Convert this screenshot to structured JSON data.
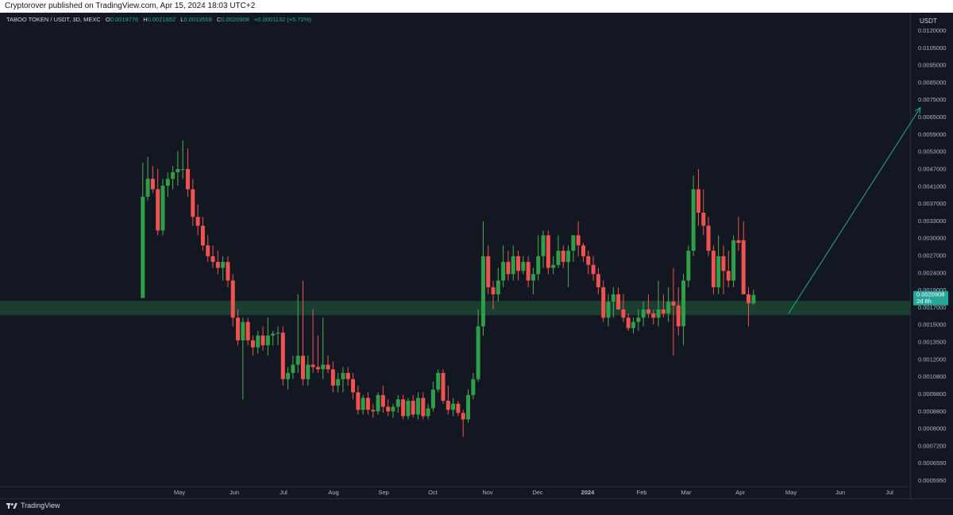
{
  "header": {
    "published": "Cryptorover published on TradingView.com, Apr 15, 2024 18:03 UTC+2"
  },
  "legend": {
    "symbol": "TABOO TOKEN / USDT, 3D, MEXC",
    "o_label": "O",
    "o": "0.0019776",
    "h_label": "H",
    "h": "0.0021652",
    "l_label": "L",
    "l": "0.0019559",
    "c_label": "C",
    "c": "0.0020908",
    "change": "+0.0001132 (+5.72%)"
  },
  "axis": {
    "unit": "USDT",
    "price_ticks": [
      "0.0120000",
      "0.0105000",
      "0.0095000",
      "0.0085000",
      "0.0075000",
      "0.0065000",
      "0.0059000",
      "0.0053000",
      "0.0047000",
      "0.0041000",
      "0.0037000",
      "0.0033000",
      "0.0030000",
      "0.0027000",
      "0.0024000",
      "0.0019000",
      "0.0017000",
      "0.0015000",
      "0.0013500",
      "0.0012000",
      "0.0010800",
      "0.0009800",
      "0.0008800",
      "0.0008000",
      "0.0007200",
      "0.0006550",
      "0.0005950"
    ],
    "time_ticks": [
      "May",
      "Jun",
      "Jul",
      "Aug",
      "Sep",
      "Oct",
      "Nov",
      "Dec",
      "2024",
      "Feb",
      "Mar",
      "Apr",
      "May",
      "Jun",
      "Jul"
    ]
  },
  "last_price": {
    "value": "0.0020908",
    "countdown": "2d 8h",
    "color": "#26a69a"
  },
  "brand": {
    "name": "TradingView"
  },
  "colors": {
    "up": "#26a69a",
    "up_body": "#2e9e48",
    "down": "#ef5350",
    "zone": "#1e4d36",
    "arrow": "#26a69a"
  },
  "chart_data": {
    "type": "candlestick",
    "title": "TABOO TOKEN / USDT, 3D, MEXC",
    "scale": "log",
    "ylim": [
      0.00057,
      0.0128
    ],
    "support_zone": [
      0.00183,
      0.00201
    ],
    "projection": {
      "from": [
        "2024-04-30",
        0.00185
      ],
      "to": [
        "2024-07-18",
        0.0072
      ]
    },
    "candles": [
      {
        "t": "2023-04-09",
        "o": 0.00205,
        "h": 0.005,
        "l": 0.00205,
        "c": 0.004
      },
      {
        "t": "2023-04-12",
        "o": 0.004,
        "h": 0.0052,
        "l": 0.0039,
        "c": 0.0045
      },
      {
        "t": "2023-04-15",
        "o": 0.0045,
        "h": 0.0049,
        "l": 0.0041,
        "c": 0.0042
      },
      {
        "t": "2023-04-18",
        "o": 0.0042,
        "h": 0.0048,
        "l": 0.0031,
        "c": 0.0032
      },
      {
        "t": "2023-04-21",
        "o": 0.0032,
        "h": 0.0045,
        "l": 0.0031,
        "c": 0.0043
      },
      {
        "t": "2023-04-24",
        "o": 0.0043,
        "h": 0.0047,
        "l": 0.004,
        "c": 0.0045
      },
      {
        "t": "2023-04-27",
        "o": 0.0045,
        "h": 0.0049,
        "l": 0.0042,
        "c": 0.0047
      },
      {
        "t": "2023-04-30",
        "o": 0.0047,
        "h": 0.0054,
        "l": 0.0043,
        "c": 0.0048
      },
      {
        "t": "2023-05-03",
        "o": 0.0048,
        "h": 0.0058,
        "l": 0.0045,
        "c": 0.0048
      },
      {
        "t": "2023-05-06",
        "o": 0.0048,
        "h": 0.0055,
        "l": 0.004,
        "c": 0.0042
      },
      {
        "t": "2023-05-09",
        "o": 0.0042,
        "h": 0.0045,
        "l": 0.0033,
        "c": 0.0035
      },
      {
        "t": "2023-05-12",
        "o": 0.0035,
        "h": 0.0038,
        "l": 0.0031,
        "c": 0.0033
      },
      {
        "t": "2023-05-15",
        "o": 0.0033,
        "h": 0.0035,
        "l": 0.0028,
        "c": 0.0029
      },
      {
        "t": "2023-05-18",
        "o": 0.0029,
        "h": 0.0031,
        "l": 0.0026,
        "c": 0.0027
      },
      {
        "t": "2023-05-21",
        "o": 0.0027,
        "h": 0.0029,
        "l": 0.0025,
        "c": 0.0026
      },
      {
        "t": "2023-05-24",
        "o": 0.0026,
        "h": 0.0028,
        "l": 0.0024,
        "c": 0.0025
      },
      {
        "t": "2023-05-27",
        "o": 0.0025,
        "h": 0.0027,
        "l": 0.0023,
        "c": 0.0026
      },
      {
        "t": "2023-05-30",
        "o": 0.0026,
        "h": 0.0027,
        "l": 0.0022,
        "c": 0.0023
      },
      {
        "t": "2023-06-02",
        "o": 0.0023,
        "h": 0.0024,
        "l": 0.0017,
        "c": 0.0018
      },
      {
        "t": "2023-06-05",
        "o": 0.0018,
        "h": 0.0019,
        "l": 0.0015,
        "c": 0.00155
      },
      {
        "t": "2023-06-08",
        "o": 0.00155,
        "h": 0.0018,
        "l": 0.00105,
        "c": 0.00175
      },
      {
        "t": "2023-06-11",
        "o": 0.00175,
        "h": 0.0018,
        "l": 0.0015,
        "c": 0.00155
      },
      {
        "t": "2023-06-14",
        "o": 0.00155,
        "h": 0.0016,
        "l": 0.0014,
        "c": 0.00148
      },
      {
        "t": "2023-06-17",
        "o": 0.00148,
        "h": 0.00165,
        "l": 0.00142,
        "c": 0.0016
      },
      {
        "t": "2023-06-20",
        "o": 0.0016,
        "h": 0.0017,
        "l": 0.00145,
        "c": 0.0015
      },
      {
        "t": "2023-06-23",
        "o": 0.0015,
        "h": 0.0018,
        "l": 0.0014,
        "c": 0.0016
      },
      {
        "t": "2023-06-26",
        "o": 0.0016,
        "h": 0.00165,
        "l": 0.0015,
        "c": 0.00162
      },
      {
        "t": "2023-06-29",
        "o": 0.00162,
        "h": 0.0017,
        "l": 0.0015,
        "c": 0.00163
      },
      {
        "t": "2023-07-02",
        "o": 0.00163,
        "h": 0.0017,
        "l": 0.00115,
        "c": 0.0012
      },
      {
        "t": "2023-07-05",
        "o": 0.0012,
        "h": 0.0013,
        "l": 0.00112,
        "c": 0.00125
      },
      {
        "t": "2023-07-08",
        "o": 0.00125,
        "h": 0.0014,
        "l": 0.0012,
        "c": 0.00132
      },
      {
        "t": "2023-07-11",
        "o": 0.00132,
        "h": 0.0021,
        "l": 0.00125,
        "c": 0.0014
      },
      {
        "t": "2023-07-14",
        "o": 0.0014,
        "h": 0.0023,
        "l": 0.00115,
        "c": 0.0012
      },
      {
        "t": "2023-07-17",
        "o": 0.0012,
        "h": 0.0014,
        "l": 0.00115,
        "c": 0.00132
      },
      {
        "t": "2023-07-20",
        "o": 0.00132,
        "h": 0.0019,
        "l": 0.00125,
        "c": 0.0013
      },
      {
        "t": "2023-07-23",
        "o": 0.0013,
        "h": 0.0016,
        "l": 0.00125,
        "c": 0.00128
      },
      {
        "t": "2023-07-26",
        "o": 0.00128,
        "h": 0.0018,
        "l": 0.0012,
        "c": 0.00132
      },
      {
        "t": "2023-07-29",
        "o": 0.00132,
        "h": 0.0014,
        "l": 0.00125,
        "c": 0.00128
      },
      {
        "t": "2023-08-01",
        "o": 0.00128,
        "h": 0.00135,
        "l": 0.0011,
        "c": 0.00115
      },
      {
        "t": "2023-08-04",
        "o": 0.00115,
        "h": 0.00125,
        "l": 0.0011,
        "c": 0.0012
      },
      {
        "t": "2023-08-07",
        "o": 0.0012,
        "h": 0.0013,
        "l": 0.0011,
        "c": 0.00125
      },
      {
        "t": "2023-08-10",
        "o": 0.00125,
        "h": 0.0013,
        "l": 0.00115,
        "c": 0.0012
      },
      {
        "t": "2023-08-13",
        "o": 0.0012,
        "h": 0.00125,
        "l": 0.00105,
        "c": 0.0011
      },
      {
        "t": "2023-08-16",
        "o": 0.0011,
        "h": 0.00115,
        "l": 0.00095,
        "c": 0.00098
      },
      {
        "t": "2023-08-19",
        "o": 0.00098,
        "h": 0.00108,
        "l": 0.00095,
        "c": 0.00106
      },
      {
        "t": "2023-08-22",
        "o": 0.00106,
        "h": 0.0011,
        "l": 0.00095,
        "c": 0.00098
      },
      {
        "t": "2023-08-25",
        "o": 0.00098,
        "h": 0.00102,
        "l": 0.00093,
        "c": 0.00097
      },
      {
        "t": "2023-08-28",
        "o": 0.00097,
        "h": 0.0011,
        "l": 0.00095,
        "c": 0.00108
      },
      {
        "t": "2023-08-31",
        "o": 0.00108,
        "h": 0.00115,
        "l": 0.00096,
        "c": 0.001
      },
      {
        "t": "2023-09-03",
        "o": 0.001,
        "h": 0.00105,
        "l": 0.00094,
        "c": 0.00097
      },
      {
        "t": "2023-09-06",
        "o": 0.00097,
        "h": 0.00102,
        "l": 0.00093,
        "c": 0.001
      },
      {
        "t": "2023-09-09",
        "o": 0.001,
        "h": 0.00108,
        "l": 0.00096,
        "c": 0.00105
      },
      {
        "t": "2023-09-12",
        "o": 0.00105,
        "h": 0.00108,
        "l": 0.00092,
        "c": 0.00094
      },
      {
        "t": "2023-09-15",
        "o": 0.00094,
        "h": 0.00106,
        "l": 0.00092,
        "c": 0.00104
      },
      {
        "t": "2023-09-18",
        "o": 0.00104,
        "h": 0.00108,
        "l": 0.00093,
        "c": 0.00095
      },
      {
        "t": "2023-09-21",
        "o": 0.00095,
        "h": 0.0011,
        "l": 0.00092,
        "c": 0.00106
      },
      {
        "t": "2023-09-24",
        "o": 0.00106,
        "h": 0.0011,
        "l": 0.00092,
        "c": 0.00094
      },
      {
        "t": "2023-09-27",
        "o": 0.00094,
        "h": 0.00102,
        "l": 0.00092,
        "c": 0.00099
      },
      {
        "t": "2023-09-30",
        "o": 0.00099,
        "h": 0.00118,
        "l": 0.00097,
        "c": 0.00112
      },
      {
        "t": "2023-10-03",
        "o": 0.00112,
        "h": 0.00128,
        "l": 0.0011,
        "c": 0.00125
      },
      {
        "t": "2023-10-06",
        "o": 0.00125,
        "h": 0.00128,
        "l": 0.00102,
        "c": 0.00104
      },
      {
        "t": "2023-10-09",
        "o": 0.00104,
        "h": 0.00115,
        "l": 0.00095,
        "c": 0.00098
      },
      {
        "t": "2023-10-12",
        "o": 0.00098,
        "h": 0.00106,
        "l": 0.00094,
        "c": 0.00102
      },
      {
        "t": "2023-10-15",
        "o": 0.00102,
        "h": 0.00104,
        "l": 0.00094,
        "c": 0.00096
      },
      {
        "t": "2023-10-18",
        "o": 0.00096,
        "h": 0.00098,
        "l": 0.00082,
        "c": 0.00092
      },
      {
        "t": "2023-10-21",
        "o": 0.00092,
        "h": 0.00112,
        "l": 0.0009,
        "c": 0.00108
      },
      {
        "t": "2023-10-24",
        "o": 0.00108,
        "h": 0.00125,
        "l": 0.00105,
        "c": 0.0012
      },
      {
        "t": "2023-10-27",
        "o": 0.0012,
        "h": 0.0019,
        "l": 0.00118,
        "c": 0.0017
      },
      {
        "t": "2023-10-30",
        "o": 0.0017,
        "h": 0.0034,
        "l": 0.0016,
        "c": 0.0027
      },
      {
        "t": "2023-11-02",
        "o": 0.0027,
        "h": 0.0029,
        "l": 0.0021,
        "c": 0.0022
      },
      {
        "t": "2023-11-05",
        "o": 0.0022,
        "h": 0.0023,
        "l": 0.0019,
        "c": 0.0021
      },
      {
        "t": "2023-11-08",
        "o": 0.0021,
        "h": 0.0025,
        "l": 0.002,
        "c": 0.0023
      },
      {
        "t": "2023-11-11",
        "o": 0.0023,
        "h": 0.0029,
        "l": 0.0022,
        "c": 0.0026
      },
      {
        "t": "2023-11-14",
        "o": 0.0026,
        "h": 0.0028,
        "l": 0.0023,
        "c": 0.0024
      },
      {
        "t": "2023-11-17",
        "o": 0.0024,
        "h": 0.0029,
        "l": 0.0023,
        "c": 0.0027
      },
      {
        "t": "2023-11-20",
        "o": 0.0027,
        "h": 0.0028,
        "l": 0.0023,
        "c": 0.00245
      },
      {
        "t": "2023-11-23",
        "o": 0.00245,
        "h": 0.0027,
        "l": 0.0024,
        "c": 0.0026
      },
      {
        "t": "2023-11-26",
        "o": 0.0026,
        "h": 0.0027,
        "l": 0.0022,
        "c": 0.0023
      },
      {
        "t": "2023-11-29",
        "o": 0.0023,
        "h": 0.0025,
        "l": 0.0021,
        "c": 0.0024
      },
      {
        "t": "2023-12-02",
        "o": 0.0024,
        "h": 0.0031,
        "l": 0.0023,
        "c": 0.0027
      },
      {
        "t": "2023-12-05",
        "o": 0.0027,
        "h": 0.0032,
        "l": 0.0025,
        "c": 0.0031
      },
      {
        "t": "2023-12-08",
        "o": 0.0031,
        "h": 0.0032,
        "l": 0.0024,
        "c": 0.0025
      },
      {
        "t": "2023-12-11",
        "o": 0.0025,
        "h": 0.0027,
        "l": 0.0024,
        "c": 0.00255
      },
      {
        "t": "2023-12-14",
        "o": 0.00255,
        "h": 0.0031,
        "l": 0.0025,
        "c": 0.0028
      },
      {
        "t": "2023-12-17",
        "o": 0.0028,
        "h": 0.0029,
        "l": 0.0025,
        "c": 0.0026
      },
      {
        "t": "2023-12-20",
        "o": 0.0026,
        "h": 0.0029,
        "l": 0.0022,
        "c": 0.0028
      },
      {
        "t": "2023-12-23",
        "o": 0.0028,
        "h": 0.0031,
        "l": 0.0026,
        "c": 0.0031
      },
      {
        "t": "2023-12-26",
        "o": 0.0031,
        "h": 0.0034,
        "l": 0.0027,
        "c": 0.0029
      },
      {
        "t": "2023-12-29",
        "o": 0.0029,
        "h": 0.00295,
        "l": 0.0026,
        "c": 0.0027
      },
      {
        "t": "2024-01-01",
        "o": 0.0027,
        "h": 0.0028,
        "l": 0.0024,
        "c": 0.00255
      },
      {
        "t": "2024-01-04",
        "o": 0.00255,
        "h": 0.0027,
        "l": 0.0023,
        "c": 0.0024
      },
      {
        "t": "2024-01-07",
        "o": 0.0024,
        "h": 0.0025,
        "l": 0.0021,
        "c": 0.0022
      },
      {
        "t": "2024-01-10",
        "o": 0.0022,
        "h": 0.0023,
        "l": 0.00175,
        "c": 0.0018
      },
      {
        "t": "2024-01-13",
        "o": 0.0018,
        "h": 0.0021,
        "l": 0.0017,
        "c": 0.002
      },
      {
        "t": "2024-01-16",
        "o": 0.002,
        "h": 0.0022,
        "l": 0.0018,
        "c": 0.0021
      },
      {
        "t": "2024-01-19",
        "o": 0.0021,
        "h": 0.0022,
        "l": 0.0019,
        "c": 0.0019
      },
      {
        "t": "2024-01-22",
        "o": 0.0019,
        "h": 0.0021,
        "l": 0.00175,
        "c": 0.0018
      },
      {
        "t": "2024-01-25",
        "o": 0.0018,
        "h": 0.00185,
        "l": 0.00165,
        "c": 0.00168
      },
      {
        "t": "2024-01-28",
        "o": 0.00168,
        "h": 0.0018,
        "l": 0.00162,
        "c": 0.00175
      },
      {
        "t": "2024-01-31",
        "o": 0.00175,
        "h": 0.0019,
        "l": 0.00165,
        "c": 0.0018
      },
      {
        "t": "2024-02-03",
        "o": 0.0018,
        "h": 0.002,
        "l": 0.0017,
        "c": 0.0019
      },
      {
        "t": "2024-02-06",
        "o": 0.0019,
        "h": 0.0021,
        "l": 0.0018,
        "c": 0.00185
      },
      {
        "t": "2024-02-09",
        "o": 0.00185,
        "h": 0.0019,
        "l": 0.00172,
        "c": 0.0018
      },
      {
        "t": "2024-02-12",
        "o": 0.0018,
        "h": 0.0023,
        "l": 0.0017,
        "c": 0.0019
      },
      {
        "t": "2024-02-15",
        "o": 0.0019,
        "h": 0.0021,
        "l": 0.0018,
        "c": 0.00185
      },
      {
        "t": "2024-02-18",
        "o": 0.00185,
        "h": 0.0022,
        "l": 0.00175,
        "c": 0.002
      },
      {
        "t": "2024-02-21",
        "o": 0.002,
        "h": 0.0025,
        "l": 0.0014,
        "c": 0.00195
      },
      {
        "t": "2024-02-24",
        "o": 0.00195,
        "h": 0.0022,
        "l": 0.0016,
        "c": 0.0017
      },
      {
        "t": "2024-02-27",
        "o": 0.0017,
        "h": 0.0024,
        "l": 0.0015,
        "c": 0.0023
      },
      {
        "t": "2024-03-01",
        "o": 0.0023,
        "h": 0.0029,
        "l": 0.0022,
        "c": 0.0028
      },
      {
        "t": "2024-03-04",
        "o": 0.0028,
        "h": 0.0046,
        "l": 0.0027,
        "c": 0.0042
      },
      {
        "t": "2024-03-07",
        "o": 0.0042,
        "h": 0.0048,
        "l": 0.0033,
        "c": 0.0036
      },
      {
        "t": "2024-03-10",
        "o": 0.0036,
        "h": 0.0042,
        "l": 0.0031,
        "c": 0.0033
      },
      {
        "t": "2024-03-13",
        "o": 0.0033,
        "h": 0.0035,
        "l": 0.0027,
        "c": 0.0028
      },
      {
        "t": "2024-03-16",
        "o": 0.0028,
        "h": 0.0029,
        "l": 0.0021,
        "c": 0.0022
      },
      {
        "t": "2024-03-19",
        "o": 0.0022,
        "h": 0.0031,
        "l": 0.0021,
        "c": 0.0027
      },
      {
        "t": "2024-03-22",
        "o": 0.0027,
        "h": 0.0029,
        "l": 0.0021,
        "c": 0.00245
      },
      {
        "t": "2024-03-25",
        "o": 0.00245,
        "h": 0.0028,
        "l": 0.0022,
        "c": 0.0023
      },
      {
        "t": "2024-03-28",
        "o": 0.0023,
        "h": 0.0031,
        "l": 0.0022,
        "c": 0.003
      },
      {
        "t": "2024-03-31",
        "o": 0.003,
        "h": 0.0035,
        "l": 0.0028,
        "c": 0.00295
      },
      {
        "t": "2024-04-03",
        "o": 0.003,
        "h": 0.0034,
        "l": 0.0021,
        "c": 0.0021
      },
      {
        "t": "2024-04-06",
        "o": 0.0021,
        "h": 0.0022,
        "l": 0.0017,
        "c": 0.00198
      },
      {
        "t": "2024-04-09",
        "o": 0.0019776,
        "h": 0.0021652,
        "l": 0.0019559,
        "c": 0.0020908
      }
    ]
  }
}
